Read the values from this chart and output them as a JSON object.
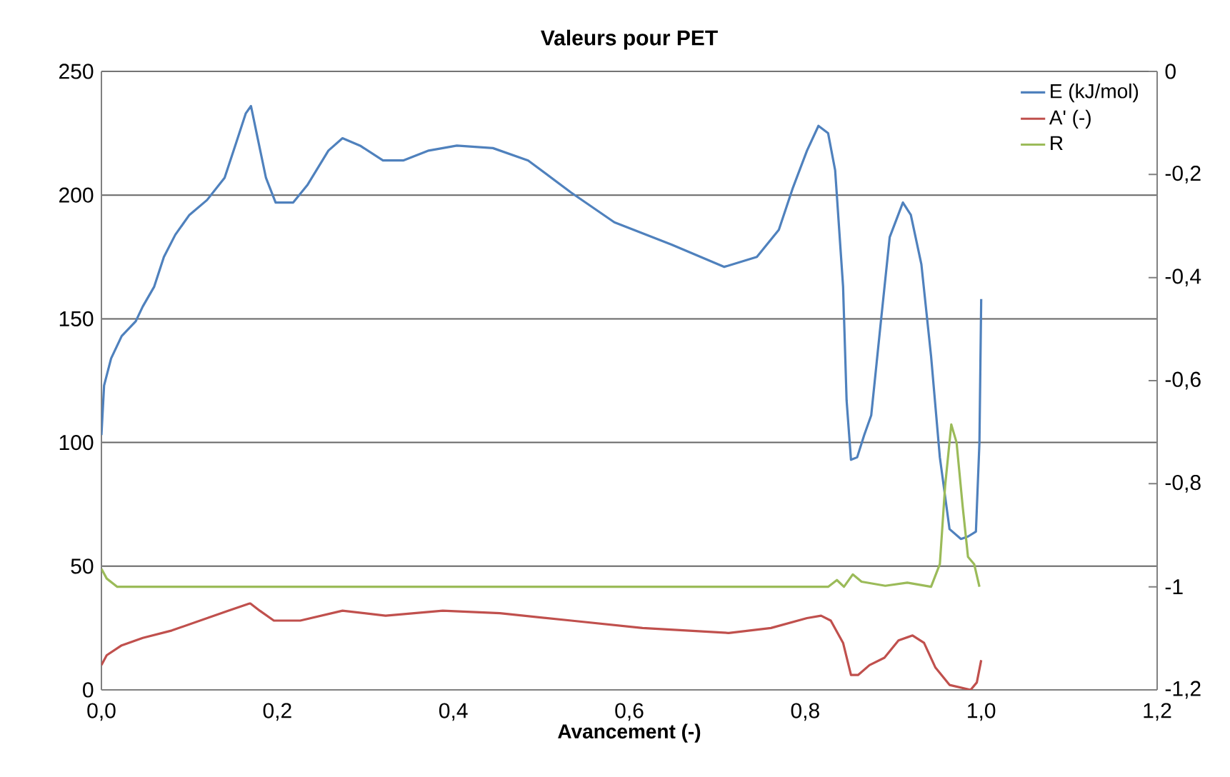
{
  "chart_data": {
    "type": "line",
    "title": "Valeurs pour PET",
    "xlabel": "Avancement  (-)",
    "xlim": [
      0,
      1.2
    ],
    "xticks": [
      {
        "value": 0,
        "label": "0,0"
      },
      {
        "value": 0.2,
        "label": "0,2"
      },
      {
        "value": 0.4,
        "label": "0,4"
      },
      {
        "value": 0.6,
        "label": "0,6"
      },
      {
        "value": 0.8,
        "label": "0,8"
      },
      {
        "value": 1.0,
        "label": "1,0"
      },
      {
        "value": 1.2,
        "label": "1,2"
      }
    ],
    "ylim": [
      0,
      250
    ],
    "yticks": [
      0,
      50,
      100,
      150,
      200,
      250
    ],
    "y2lim": [
      -1.2,
      0
    ],
    "y2ticks": [
      {
        "value": -1.2,
        "label": "-1,2"
      },
      -1,
      {
        "value": -0.8,
        "label": "-0,8"
      },
      {
        "value": -0.6,
        "label": "-0,6"
      },
      {
        "value": -0.4,
        "label": "-0,4"
      },
      {
        "value": -0.2,
        "label": "-0,2"
      },
      0
    ],
    "grid": "y",
    "legend": "top right",
    "series": [
      {
        "name": "E (kJ/mol)",
        "color": "#4f81bd",
        "x": [
          0,
          0.003,
          0.011,
          0.023,
          0.039,
          0.047,
          0.06,
          0.071,
          0.084,
          0.1,
          0.12,
          0.14,
          0.153,
          0.164,
          0.17,
          0.177,
          0.187,
          0.198,
          0.218,
          0.234,
          0.258,
          0.274,
          0.294,
          0.32,
          0.343,
          0.372,
          0.404,
          0.445,
          0.485,
          0.534,
          0.583,
          0.648,
          0.708,
          0.745,
          0.77,
          0.786,
          0.802,
          0.815,
          0.826,
          0.834,
          0.843,
          0.847,
          0.852,
          0.859,
          0.867,
          0.875,
          0.886,
          0.896,
          0.911,
          0.92,
          0.932,
          0.943,
          0.953,
          0.964,
          0.977,
          0.985,
          0.994,
          0.998,
          1.0
        ],
        "values": [
          103,
          123,
          134,
          143,
          149,
          155,
          163,
          175,
          184,
          192,
          198,
          207,
          221,
          233,
          236,
          224,
          207,
          197,
          197,
          204,
          218,
          223,
          220,
          214,
          214,
          218,
          220,
          219,
          214,
          201,
          189,
          180,
          171,
          175,
          186,
          203,
          218,
          228,
          225,
          210,
          163,
          117,
          93,
          94,
          103,
          111,
          149,
          183,
          197,
          192,
          172,
          135,
          94,
          65,
          61,
          62,
          64,
          100,
          158
        ]
      },
      {
        "name": "A' (-)",
        "color": "#c0504d",
        "x": [
          0,
          0.006,
          0.023,
          0.047,
          0.08,
          0.112,
          0.144,
          0.169,
          0.18,
          0.196,
          0.226,
          0.274,
          0.323,
          0.388,
          0.453,
          0.534,
          0.615,
          0.713,
          0.761,
          0.802,
          0.818,
          0.829,
          0.843,
          0.852,
          0.86,
          0.873,
          0.89,
          0.906,
          0.922,
          0.935,
          0.948,
          0.964,
          0.988,
          0.995,
          1.0
        ],
        "values": [
          10,
          14,
          18,
          21,
          24,
          28,
          32,
          35,
          32,
          28,
          28,
          32,
          30,
          32,
          31,
          28,
          25,
          23,
          25,
          29,
          30,
          28,
          19,
          6,
          6,
          10,
          13,
          20,
          22,
          19,
          9,
          2,
          0,
          3,
          12
        ]
      },
      {
        "name": "R",
        "color": "#9bbb59",
        "axis": "y2",
        "x": [
          0,
          0.006,
          0.018,
          0.372,
          0.826,
          0.836,
          0.844,
          0.854,
          0.864,
          0.891,
          0.916,
          0.943,
          0.953,
          0.959,
          0.966,
          0.972,
          0.979,
          0.985,
          0.992,
          0.998
        ],
        "values": [
          -0.965,
          -0.984,
          -1.0,
          -1.0,
          -1.0,
          -0.987,
          -1.0,
          -0.976,
          -0.99,
          -0.998,
          -0.992,
          -1.0,
          -0.956,
          -0.804,
          -0.685,
          -0.72,
          -0.845,
          -0.942,
          -0.956,
          -1.0
        ]
      }
    ]
  }
}
